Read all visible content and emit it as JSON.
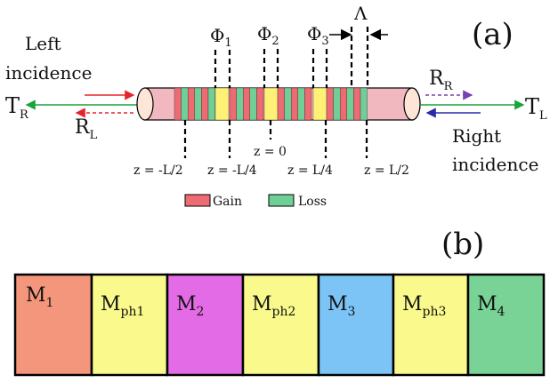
{
  "panel_a": {
    "label": "(a)",
    "left_incidence_line1": "Left",
    "left_incidence_line2": "incidence",
    "right_incidence_line1": "Right",
    "right_incidence_line2": "incidence",
    "T_R": {
      "main": "T",
      "sub": "R"
    },
    "R_L": {
      "main": "R",
      "sub": "L"
    },
    "R_R": {
      "main": "R",
      "sub": "R"
    },
    "T_L": {
      "main": "T",
      "sub": "L"
    },
    "phi1": {
      "main": "Φ",
      "sub": "1"
    },
    "phi2": {
      "main": "Φ",
      "sub": "2"
    },
    "phi3": {
      "main": "Φ",
      "sub": "3"
    },
    "period": "Λ",
    "z_labels": [
      "z = -L/2",
      "z = -L/4",
      "z = 0",
      "z = L/4",
      "z = L/2"
    ],
    "legend": {
      "gain": "Gain",
      "loss": "Loss"
    },
    "colors": {
      "gain": "#ee6b73",
      "loss": "#6fcf97",
      "phase": "#fff176",
      "cap": "#fde6d8",
      "tube": "#f2b8c0"
    }
  },
  "panel_b": {
    "label": "(b)",
    "blocks": [
      {
        "main": "M",
        "sub": "1",
        "color": "#f4967b"
      },
      {
        "main": "M",
        "sub": "ph1",
        "color": "#fafa8c"
      },
      {
        "main": "M",
        "sub": "2",
        "color": "#e46be6"
      },
      {
        "main": "M",
        "sub": "ph2",
        "color": "#fafa8c"
      },
      {
        "main": "M",
        "sub": "3",
        "color": "#7cc4f6"
      },
      {
        "main": "M",
        "sub": "ph3",
        "color": "#fafa8c"
      },
      {
        "main": "M",
        "sub": "4",
        "color": "#79d296"
      }
    ]
  },
  "icons": {
    "arrows": [
      "arrow-red-right",
      "arrow-green-left",
      "arrow-red-dashed-left",
      "arrow-purple-dashed-right",
      "arrow-blue-left",
      "arrow-green-right"
    ]
  }
}
